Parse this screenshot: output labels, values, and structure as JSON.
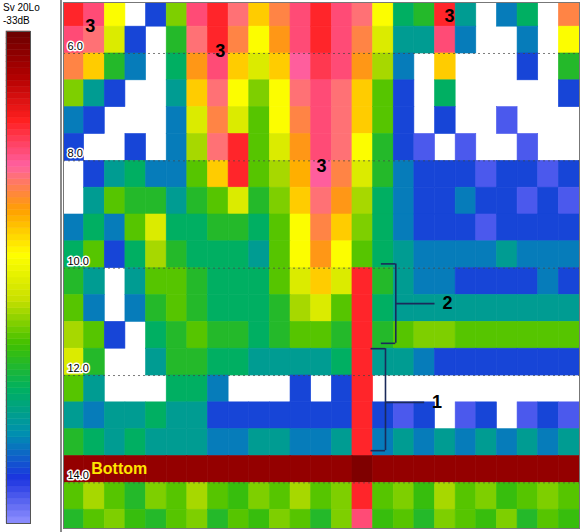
{
  "chart_data": {
    "type": "heatmap",
    "xlim": [
      0,
      25
    ],
    "ylim": [
      5.05,
      14.85
    ],
    "yticks": [
      {
        "value": 6,
        "label": "6.0"
      },
      {
        "value": 8,
        "label": "8.0"
      },
      {
        "value": 10,
        "label": "10.0"
      },
      {
        "value": 12,
        "label": "12.0"
      },
      {
        "value": 14,
        "label": "14.0"
      }
    ],
    "grid": true,
    "tick_labels": "y",
    "x_bins": [
      0,
      1,
      2,
      3,
      4,
      5,
      6,
      7,
      8,
      9,
      10,
      11,
      12,
      13,
      14,
      15,
      16,
      17,
      18,
      19,
      20,
      21,
      22,
      23,
      24,
      25
    ],
    "y_bins": [
      5.0,
      5.5,
      6.0,
      6.5,
      7.0,
      7.5,
      8.0,
      8.5,
      9.0,
      9.5,
      10.0,
      10.5,
      11.0,
      11.5,
      12.0,
      12.5,
      13.0,
      13.5,
      14.0,
      14.5,
      15.0
    ],
    "cells": [
      [
        -40,
        -42,
        -50,
        null,
        -66,
        -55,
        -42,
        -40,
        -44,
        -48,
        -45,
        -42,
        -40,
        -42,
        -44,
        -50,
        -60,
        -58,
        -40,
        -62,
        null,
        -64,
        -60,
        null,
        -45
      ],
      [
        -42,
        -44,
        -52,
        -66,
        null,
        -58,
        -44,
        -40,
        -45,
        -50,
        -46,
        -42,
        -40,
        -42,
        -45,
        -52,
        -62,
        -62,
        -42,
        -64,
        null,
        null,
        -64,
        null,
        -50
      ],
      [
        -45,
        -48,
        -58,
        -64,
        null,
        -60,
        -46,
        -42,
        -48,
        -52,
        -48,
        -43,
        -41,
        -42,
        -46,
        -54,
        -64,
        null,
        -48,
        null,
        null,
        null,
        -66,
        null,
        -58
      ],
      [
        -55,
        -62,
        -66,
        null,
        null,
        -62,
        -48,
        -44,
        -50,
        -55,
        -50,
        -44,
        -42,
        -44,
        -48,
        -56,
        -66,
        null,
        -60,
        null,
        null,
        null,
        null,
        null,
        -66
      ],
      [
        -64,
        -66,
        null,
        null,
        null,
        -64,
        -52,
        -45,
        -52,
        -56,
        -50,
        -45,
        -42,
        -44,
        -48,
        -56,
        -66,
        null,
        -66,
        null,
        null,
        -68,
        null,
        null,
        null
      ],
      [
        -66,
        null,
        null,
        -66,
        null,
        -64,
        -54,
        -44,
        -40,
        -56,
        -52,
        -46,
        -42,
        -44,
        -50,
        -58,
        -66,
        -68,
        null,
        -68,
        null,
        null,
        -68,
        null,
        null
      ],
      [
        null,
        -66,
        -62,
        -60,
        -64,
        -64,
        -56,
        -48,
        -40,
        -56,
        -54,
        -47,
        -43,
        -45,
        -52,
        -58,
        -64,
        -66,
        -66,
        -66,
        -68,
        -66,
        -66,
        -68,
        -66
      ],
      [
        null,
        -62,
        -56,
        -58,
        -58,
        -62,
        -58,
        -56,
        -52,
        -58,
        -55,
        -48,
        -44,
        -46,
        -54,
        -60,
        -64,
        -66,
        -66,
        -64,
        -66,
        -66,
        -68,
        -66,
        -68
      ],
      [
        -64,
        -60,
        -64,
        -56,
        -52,
        -60,
        -60,
        -58,
        -58,
        -60,
        -56,
        -50,
        -45,
        -48,
        -55,
        -60,
        -64,
        -66,
        -66,
        -66,
        -68,
        -66,
        -66,
        -66,
        -66
      ],
      [
        -60,
        -56,
        -66,
        -60,
        -54,
        -58,
        -60,
        -60,
        -60,
        -62,
        -56,
        -50,
        -46,
        -50,
        -56,
        -60,
        -62,
        -64,
        -64,
        -64,
        -64,
        -62,
        -64,
        -64,
        -64
      ],
      [
        -58,
        -62,
        null,
        -62,
        -56,
        -56,
        -58,
        -60,
        -60,
        -60,
        -56,
        -52,
        -48,
        -52,
        -40,
        -58,
        -62,
        -64,
        -64,
        -66,
        -66,
        -66,
        -66,
        -64,
        -66
      ],
      [
        -56,
        -64,
        null,
        -64,
        -58,
        -56,
        -58,
        -60,
        -60,
        -60,
        -58,
        -54,
        -52,
        -56,
        -40,
        -60,
        -62,
        -62,
        -62,
        -62,
        -62,
        -62,
        -62,
        -62,
        -62
      ],
      [
        -54,
        -56,
        -66,
        null,
        -60,
        -58,
        -56,
        -58,
        -58,
        -60,
        -58,
        -56,
        -56,
        -58,
        -40,
        -58,
        -56,
        -55,
        -55,
        -56,
        -56,
        -56,
        -56,
        -56,
        -56
      ],
      [
        -52,
        -58,
        null,
        null,
        -62,
        -58,
        -58,
        -60,
        -60,
        -62,
        -62,
        -62,
        -62,
        -60,
        -40,
        -62,
        -62,
        -64,
        -66,
        -66,
        -66,
        -66,
        -66,
        -66,
        -66
      ],
      [
        -56,
        -62,
        null,
        null,
        null,
        -60,
        -60,
        -64,
        null,
        null,
        null,
        -66,
        null,
        -66,
        -40,
        null,
        null,
        null,
        null,
        null,
        null,
        null,
        null,
        null,
        null
      ],
      [
        -62,
        -64,
        -62,
        -62,
        -60,
        -62,
        -62,
        -66,
        -66,
        -66,
        -66,
        -66,
        -66,
        -66,
        -40,
        -66,
        -68,
        -66,
        null,
        -68,
        -66,
        null,
        -68,
        -66,
        -68
      ],
      [
        -58,
        -60,
        -62,
        -60,
        -62,
        -62,
        -62,
        -64,
        -64,
        -62,
        -62,
        -64,
        -64,
        -62,
        -40,
        -64,
        -62,
        -64,
        -62,
        -64,
        -62,
        -64,
        -62,
        -64,
        -62
      ],
      [
        -35,
        -35,
        -35,
        -35,
        -35,
        -35,
        -35,
        -35,
        -35,
        -35,
        -35,
        -35,
        -35,
        -35,
        -34,
        -35,
        -35,
        -35,
        -35,
        -35,
        -35,
        -35,
        -35,
        -35,
        -35
      ],
      [
        -56,
        -54,
        -56,
        -58,
        -55,
        -56,
        -54,
        -56,
        -57,
        -55,
        -56,
        -54,
        -56,
        -55,
        -40,
        -56,
        -55,
        -57,
        -54,
        -56,
        -55,
        -57,
        -56,
        -55,
        -56
      ],
      [
        -58,
        -56,
        -55,
        -57,
        -58,
        -56,
        -55,
        -58,
        -56,
        -57,
        -55,
        -56,
        -58,
        -55,
        -42,
        -57,
        -56,
        -58,
        -55,
        -56,
        -57,
        -55,
        -58,
        -56,
        -57
      ]
    ],
    "colorbar": {
      "title": "Sv 20Lo",
      "range": [
        -70,
        -33
      ],
      "ticks": [
        {
          "value": -33,
          "label": "-33dB"
        }
      ]
    },
    "annotations": [
      {
        "text": "3",
        "x": 1.3,
        "y": 5.5,
        "color": "#000000"
      },
      {
        "text": "3",
        "x": 7.6,
        "y": 5.95,
        "color": "#000000"
      },
      {
        "text": "3",
        "x": 12.5,
        "y": 8.1,
        "color": "#000000"
      },
      {
        "text": "3",
        "x": 18.7,
        "y": 5.3,
        "color": "#000000"
      },
      {
        "text": "2",
        "x": 18.6,
        "y": 10.66,
        "span": [
          9.92,
          11.4
        ],
        "color": "#000000"
      },
      {
        "text": "1",
        "x": 18.1,
        "y": 12.5,
        "span": [
          11.5,
          13.4
        ],
        "color": "#000000"
      },
      {
        "text": "Bottom",
        "x": 2.7,
        "y": 13.74,
        "color": "#ffe600"
      }
    ]
  }
}
